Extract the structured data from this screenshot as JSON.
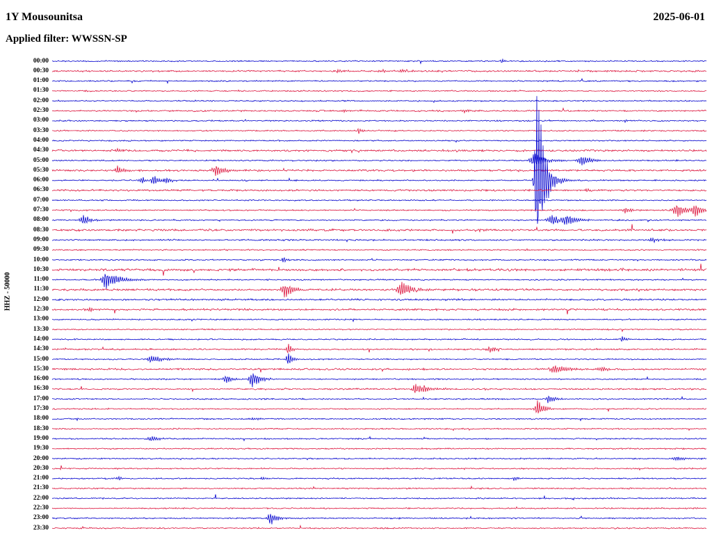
{
  "header": {
    "station": "1Y Mousounitsa",
    "date": "2025-06-01",
    "filter_label": "Applied filter: WWSSN-SP",
    "y_axis_label": "HHZ - 50000"
  },
  "chart_data": {
    "type": "line",
    "title": "1Y Mousounitsa",
    "subtitle": "Applied filter: WWSSN-SP",
    "date": "2025-06-01",
    "channel_scale_label": "HHZ - 50000",
    "row_interval_minutes": 30,
    "rows": 48,
    "legend_position": "none",
    "grid": false,
    "colors": {
      "even": "#0000cd",
      "odd": "#dc143c"
    },
    "noise_amp": 0.85,
    "time_labels": [
      "00:00",
      "00:30",
      "01:00",
      "01:30",
      "02:00",
      "02:30",
      "03:00",
      "03:30",
      "04:00",
      "04:30",
      "05:00",
      "05:30",
      "06:00",
      "06:30",
      "07:00",
      "07:30",
      "08:00",
      "08:30",
      "09:00",
      "09:30",
      "10:00",
      "10:30",
      "11:00",
      "11:30",
      "12:00",
      "12:30",
      "13:00",
      "13:30",
      "14:00",
      "14:30",
      "15:00",
      "15:30",
      "16:00",
      "16:30",
      "17:00",
      "17:30",
      "18:00",
      "18:30",
      "19:00",
      "19:30",
      "20:00",
      "20:30",
      "21:00",
      "21:30",
      "22:00",
      "22:30",
      "23:00",
      "23:30"
    ],
    "row_noise": {
      "1": 1.3,
      "5": 1.2,
      "9": 1.5,
      "11": 1.4,
      "13": 1.4,
      "17": 1.5,
      "18": 1.2,
      "21": 1.8,
      "23": 1.5,
      "24": 1.3,
      "25": 1.4,
      "29": 1.2,
      "31": 1.4,
      "33": 1.2
    },
    "events": [
      {
        "row": 0,
        "x": 0.688,
        "amp": 4,
        "w": 5
      },
      {
        "row": 1,
        "x": 0.438,
        "amp": 2.5,
        "w": 8
      },
      {
        "row": 1,
        "x": 0.505,
        "amp": 2,
        "w": 10
      },
      {
        "row": 1,
        "x": 0.535,
        "amp": 3,
        "w": 8
      },
      {
        "row": 1,
        "x": 0.592,
        "amp": 2,
        "w": 6
      },
      {
        "row": 5,
        "x": 0.446,
        "amp": 2.5,
        "w": 7
      },
      {
        "row": 5,
        "x": 0.63,
        "amp": 3,
        "w": 9
      },
      {
        "row": 6,
        "x": 0.877,
        "amp": 2,
        "w": 6
      },
      {
        "row": 7,
        "x": 0.469,
        "amp": 6,
        "w": 4
      },
      {
        "row": 9,
        "x": 0.101,
        "amp": 2.5,
        "w": 9
      },
      {
        "row": 10,
        "x": 0.739,
        "amp": 12,
        "w": 14
      },
      {
        "row": 10,
        "x": 0.81,
        "amp": 9,
        "w": 12
      },
      {
        "row": 11,
        "x": 0.101,
        "amp": 8,
        "w": 9
      },
      {
        "row": 11,
        "x": 0.252,
        "amp": 9,
        "w": 12
      },
      {
        "row": 12,
        "x": 0.138,
        "amp": 6,
        "w": 8
      },
      {
        "row": 12,
        "x": 0.156,
        "amp": 9,
        "w": 9
      },
      {
        "row": 12,
        "x": 0.175,
        "amp": 5,
        "w": 8
      },
      {
        "row": 12,
        "x": 0.741,
        "amp": 150,
        "w": 10,
        "rise": 2.5
      },
      {
        "row": 13,
        "x": 0.818,
        "amp": 2.5,
        "w": 7
      },
      {
        "row": 15,
        "x": 0.877,
        "amp": 5,
        "w": 9
      },
      {
        "row": 15,
        "x": 0.956,
        "amp": 11,
        "w": 12
      },
      {
        "row": 15,
        "x": 0.983,
        "amp": 11,
        "w": 9
      },
      {
        "row": 16,
        "x": 0.048,
        "amp": 8,
        "w": 10
      },
      {
        "row": 16,
        "x": 0.765,
        "amp": 9,
        "w": 11
      },
      {
        "row": 16,
        "x": 0.786,
        "amp": 11,
        "w": 13
      },
      {
        "row": 17,
        "x": 0.399,
        "amp": 2,
        "w": 8
      },
      {
        "row": 17,
        "x": 0.654,
        "amp": 2.5,
        "w": 8
      },
      {
        "row": 18,
        "x": 0.919,
        "amp": 4,
        "w": 10
      },
      {
        "row": 20,
        "x": 0.354,
        "amp": 7,
        "w": 4
      },
      {
        "row": 22,
        "x": 0.082,
        "amp": 14,
        "w": 18,
        "rise": 4
      },
      {
        "row": 23,
        "x": 0.356,
        "amp": 13,
        "w": 12,
        "rise": 4
      },
      {
        "row": 23,
        "x": 0.534,
        "amp": 14,
        "w": 14,
        "rise": 4
      },
      {
        "row": 25,
        "x": 0.058,
        "amp": 3,
        "w": 10
      },
      {
        "row": 28,
        "x": 0.871,
        "amp": 6,
        "w": 4
      },
      {
        "row": 29,
        "x": 0.361,
        "amp": 9,
        "w": 5,
        "rise": 2
      },
      {
        "row": 29,
        "x": 0.67,
        "amp": 6,
        "w": 9
      },
      {
        "row": 30,
        "x": 0.154,
        "amp": 6,
        "w": 16,
        "rise": 6
      },
      {
        "row": 30,
        "x": 0.361,
        "amp": 12,
        "w": 5,
        "rise": 2
      },
      {
        "row": 31,
        "x": 0.77,
        "amp": 7,
        "w": 16,
        "rise": 6
      },
      {
        "row": 31,
        "x": 0.84,
        "amp": 5,
        "w": 8
      },
      {
        "row": 32,
        "x": 0.266,
        "amp": 8,
        "w": 8
      },
      {
        "row": 32,
        "x": 0.306,
        "amp": 14,
        "w": 11,
        "rise": 3
      },
      {
        "row": 33,
        "x": 0.556,
        "amp": 9,
        "w": 16,
        "rise": 4
      },
      {
        "row": 34,
        "x": 0.76,
        "amp": 7,
        "w": 8
      },
      {
        "row": 35,
        "x": 0.742,
        "amp": 13,
        "w": 10,
        "rise": 3
      },
      {
        "row": 36,
        "x": 0.308,
        "amp": 3,
        "w": 6
      },
      {
        "row": 38,
        "x": 0.152,
        "amp": 5,
        "w": 10
      },
      {
        "row": 40,
        "x": 0.956,
        "amp": 4,
        "w": 10
      },
      {
        "row": 42,
        "x": 0.103,
        "amp": 3,
        "w": 6
      },
      {
        "row": 42,
        "x": 0.322,
        "amp": 2.5,
        "w": 6
      },
      {
        "row": 42,
        "x": 0.707,
        "amp": 4,
        "w": 6
      },
      {
        "row": 46,
        "x": 0.333,
        "amp": 12,
        "w": 9,
        "rise": 2.5
      }
    ]
  }
}
